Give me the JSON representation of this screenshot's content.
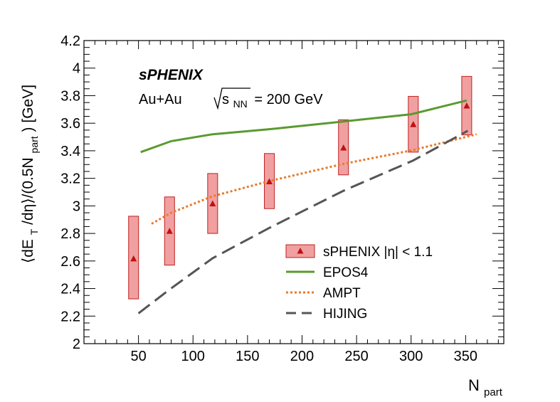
{
  "chart_data": {
    "type": "line",
    "experiment_label": "sPHENIX",
    "system_label": "Au+Au",
    "energy_label": {
      "sqrt": "s",
      "sub": "NN",
      "rest": "= 200 GeV"
    },
    "xlabel": {
      "main": "N",
      "sub": "part"
    },
    "ylabel": {
      "p1": "⟨dE",
      "sub1": "T",
      "p2": "/dη⟩/(0.5N",
      "sub2": "part",
      "p3": ") [GeV]"
    },
    "xlim": [
      0,
      385
    ],
    "ylim": [
      2.0,
      4.2
    ],
    "x_ticks": [
      50,
      100,
      150,
      200,
      250,
      300,
      350
    ],
    "x_tick_labels": [
      "50",
      "100",
      "150",
      "200",
      "250",
      "300",
      "350"
    ],
    "y_ticks": [
      2.0,
      2.2,
      2.4,
      2.6,
      2.8,
      3.0,
      3.2,
      3.4,
      3.6,
      3.8,
      4.0,
      4.2
    ],
    "y_tick_labels": [
      "2",
      "2.2",
      "2.4",
      "2.6",
      "2.8",
      "3",
      "3.2",
      "3.4",
      "3.6",
      "3.8",
      "4",
      "4.2"
    ],
    "grid": false,
    "legend_position": "bottom-right",
    "legend": [
      {
        "name": "sPHENIX |η| < 1.1",
        "kind": "data"
      },
      {
        "name": "EPOS4",
        "kind": "solid"
      },
      {
        "name": "AMPT",
        "kind": "dotted"
      },
      {
        "name": "HIJING",
        "kind": "dashed"
      }
    ],
    "data_series": {
      "name": "sPHENIX |η| < 1.1",
      "points": [
        {
          "x": 45.5,
          "y": 2.615,
          "sys_lo": 2.325,
          "sys_hi": 2.925
        },
        {
          "x": 78.5,
          "y": 2.815,
          "sys_lo": 2.57,
          "sys_hi": 3.065
        },
        {
          "x": 118,
          "y": 3.015,
          "sys_lo": 2.8,
          "sys_hi": 3.235
        },
        {
          "x": 170,
          "y": 3.175,
          "sys_lo": 2.98,
          "sys_hi": 3.38
        },
        {
          "x": 238,
          "y": 3.42,
          "sys_lo": 3.225,
          "sys_hi": 3.625
        },
        {
          "x": 302,
          "y": 3.59,
          "sys_lo": 3.39,
          "sys_hi": 3.795
        },
        {
          "x": 351,
          "y": 3.725,
          "sys_lo": 3.515,
          "sys_hi": 3.94
        }
      ]
    },
    "series": [
      {
        "name": "EPOS4",
        "color": "#5a9a2f",
        "style": "solid",
        "x": [
          52,
          80,
          118,
          168,
          235,
          300,
          351
        ],
        "y": [
          3.39,
          3.47,
          3.52,
          3.555,
          3.61,
          3.665,
          3.765
        ]
      },
      {
        "name": "AMPT",
        "color": "#e87a2a",
        "style": "dotted",
        "x": [
          62,
          80,
          118,
          170,
          238,
          302,
          360
        ],
        "y": [
          2.87,
          2.95,
          3.07,
          3.18,
          3.305,
          3.405,
          3.52
        ]
      },
      {
        "name": "HIJING",
        "color": "#555555",
        "style": "dashed",
        "x": [
          50,
          78,
          118,
          170,
          238,
          302,
          352
        ],
        "y": [
          2.22,
          2.39,
          2.62,
          2.84,
          3.11,
          3.33,
          3.545
        ]
      }
    ],
    "colors": {
      "box_fill": "#f0a0a0",
      "box_stroke": "#c02020",
      "marker": "#c01010"
    }
  }
}
